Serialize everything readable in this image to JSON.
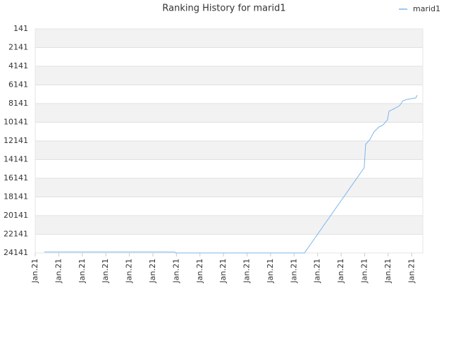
{
  "chart_data": {
    "type": "line",
    "title": "Ranking History for marid1",
    "x": [
      0.39,
      5.93,
      5.96,
      11.44,
      13.98,
      14.04,
      14.22,
      14.4,
      14.61,
      14.76,
      14.97,
      15.03,
      15.27,
      15.48,
      15.63,
      15.81,
      16.17,
      16.23
    ],
    "series": [
      {
        "name": "marid1",
        "color": "#7cb5ec",
        "values": [
          24050,
          24050,
          24141,
          24141,
          15009,
          12518,
          11990,
          11160,
          10630,
          10480,
          9880,
          8970,
          8670,
          8370,
          7840,
          7690,
          7540,
          7240
        ]
      }
    ],
    "xlim": [
      0,
      16.47
    ],
    "xticks": [
      {
        "value": 0,
        "label": "Jan.21"
      },
      {
        "value": 1,
        "label": "Jan.21"
      },
      {
        "value": 2,
        "label": "Jan.21"
      },
      {
        "value": 3,
        "label": "Jan.21"
      },
      {
        "value": 4,
        "label": "Jan.21"
      },
      {
        "value": 5,
        "label": "Jan.21"
      },
      {
        "value": 6,
        "label": "Jan.21"
      },
      {
        "value": 7,
        "label": "Jan.21"
      },
      {
        "value": 8,
        "label": "Jan.21"
      },
      {
        "value": 9,
        "label": "Jan.21"
      },
      {
        "value": 10,
        "label": "Jan.21"
      },
      {
        "value": 11,
        "label": "Jan.21"
      },
      {
        "value": 12,
        "label": "Jan.21"
      },
      {
        "value": 13,
        "label": "Jan.21"
      },
      {
        "value": 14,
        "label": "Jan.21"
      },
      {
        "value": 15,
        "label": "Jan.21"
      },
      {
        "value": 16,
        "label": "Jan.21"
      }
    ],
    "ylim": [
      24141,
      141
    ],
    "yticks": [
      141,
      2141,
      4141,
      6141,
      8141,
      10141,
      12141,
      14141,
      16141,
      18141,
      20141,
      22141,
      24141
    ],
    "grid": true,
    "legend": "upper right"
  }
}
